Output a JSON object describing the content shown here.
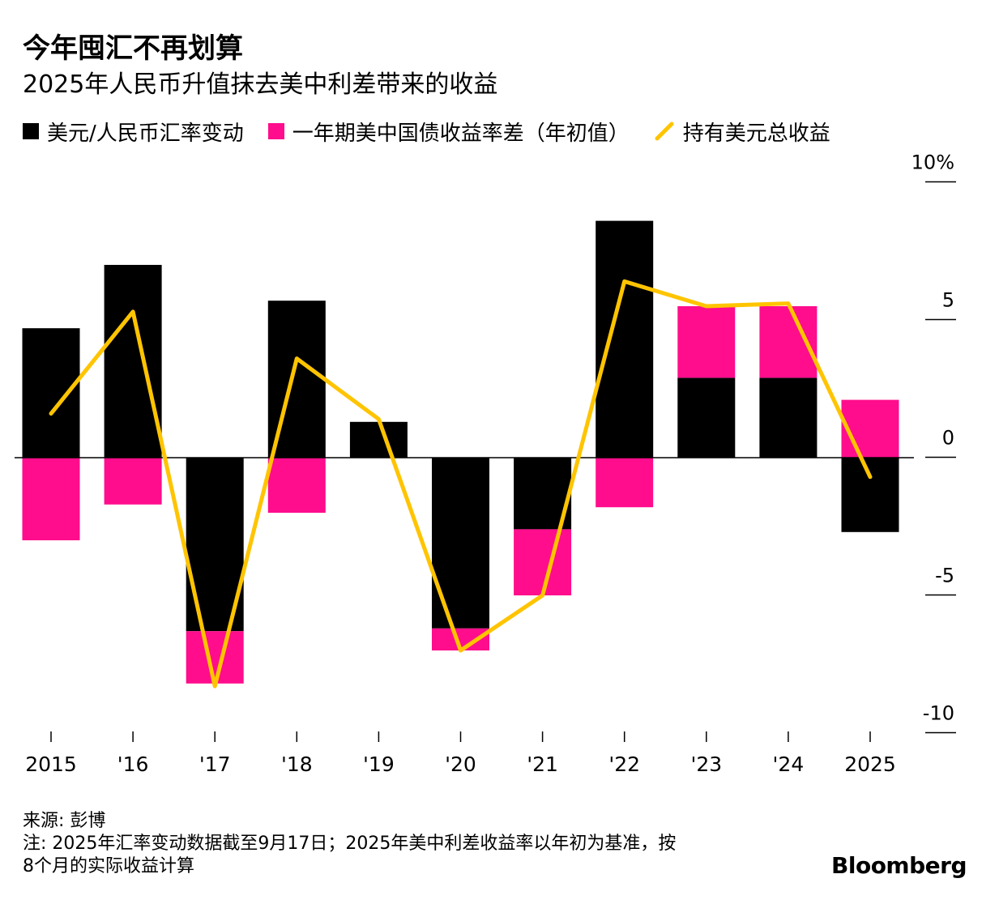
{
  "header": {
    "title": "今年囤汇不再划算",
    "subtitle": "2025年人民币升值抹去美中利差带来的收益"
  },
  "legend": {
    "fx_change": "美元/人民币汇率变动",
    "yield_spread": "一年期美中国债收益率差（年初值）",
    "total_return": "持有美元总收益"
  },
  "colors": {
    "fx_change": "#000000",
    "yield_spread": "#ff0d8c",
    "total_return": "#ffc400"
  },
  "chart_data": {
    "type": "bar",
    "stacked": true,
    "categories": [
      "2015",
      "'16",
      "'17",
      "'18",
      "'19",
      "'20",
      "'21",
      "'22",
      "'23",
      "'24",
      "2025"
    ],
    "series": [
      {
        "name": "美元/人民币汇率变动",
        "kind": "bar",
        "values": [
          4.7,
          7.0,
          -6.3,
          5.7,
          1.3,
          -6.2,
          -2.6,
          8.6,
          2.9,
          2.9,
          -2.7
        ]
      },
      {
        "name": "一年期美中国债收益率差（年初值）",
        "kind": "bar",
        "values": [
          -3.0,
          -1.7,
          -1.9,
          -2.0,
          0,
          -0.8,
          -2.4,
          -1.8,
          2.6,
          2.6,
          2.1
        ]
      },
      {
        "name": "持有美元总收益",
        "kind": "line",
        "values": [
          1.6,
          5.3,
          -8.3,
          3.6,
          1.4,
          -7.0,
          -5.0,
          6.4,
          5.5,
          5.6,
          -0.7
        ]
      }
    ],
    "y_ticks": [
      10,
      5,
      0,
      -5,
      -10
    ],
    "y_tick_labels": [
      "10%",
      "5",
      "0",
      "-5",
      "-10"
    ],
    "ylim": [
      -10,
      10
    ]
  },
  "footer": {
    "source": "来源: 彭博",
    "note_line1": "注: 2025年汇率变动数据截至9月17日；2025年美中利差收益率以年初为基准，按",
    "note_line2": "8个月的实际收益计算",
    "brand": "Bloomberg"
  }
}
